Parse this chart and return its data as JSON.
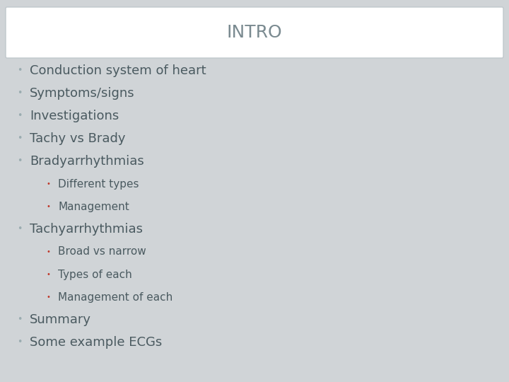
{
  "title": "INTRO",
  "title_fontsize": 18,
  "title_color": "#7a8a90",
  "bg_color": "#d0d4d7",
  "header_bg": "#ffffff",
  "header_border": "#c0c8cc",
  "bullet_color_main": "#9aacb0",
  "bullet_color_sub": "#c0392b",
  "text_color": "#4a5a60",
  "main_items": [
    {
      "text": "Conduction system of heart",
      "indent": 0,
      "size": 13
    },
    {
      "text": "Symptoms/signs",
      "indent": 0,
      "size": 13
    },
    {
      "text": "Investigations",
      "indent": 0,
      "size": 13
    },
    {
      "text": "Tachy vs Brady",
      "indent": 0,
      "size": 13
    },
    {
      "text": "Bradyarrhythmias",
      "indent": 0,
      "size": 13
    },
    {
      "text": "Different types",
      "indent": 1,
      "size": 11
    },
    {
      "text": "Management",
      "indent": 1,
      "size": 11
    },
    {
      "text": "Tachyarrhythmias",
      "indent": 0,
      "size": 13
    },
    {
      "text": "Broad vs narrow",
      "indent": 1,
      "size": 11
    },
    {
      "text": "Types of each",
      "indent": 1,
      "size": 11
    },
    {
      "text": "Management of each",
      "indent": 1,
      "size": 11
    },
    {
      "text": "Summary",
      "indent": 0,
      "size": 13
    },
    {
      "text": "Some example ECGs",
      "indent": 0,
      "size": 13
    }
  ]
}
